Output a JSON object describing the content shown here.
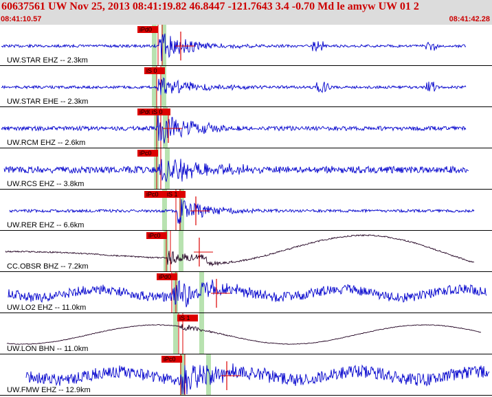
{
  "header": {
    "title": "60637561 UW Nov 25, 2013 08:41:19.82    46.8447 -121.7643  3.4 -0.70 Md le amyw UW 01    2",
    "start_time": "08:41:10.57",
    "end_time": "08:41:42.28"
  },
  "colors": {
    "header_bg": "#dcdcdc",
    "header_text": "#cc0000",
    "trace_blue": "#0000cc",
    "trace_dark": "#200020",
    "pick_red": "#dd0000",
    "window_green": "#b8e2b0",
    "separator": "#000000"
  },
  "traces": [
    {
      "station": "UW.STAR EHZ -- 2.3km",
      "picks": [
        "iPd0"
      ],
      "color": "blue",
      "kind": "hf",
      "noise": 2,
      "burst": 22,
      "decay": 45
    },
    {
      "station": "UW.STAR EHE -- 2.3km",
      "picks": [
        "iS 0"
      ],
      "color": "blue",
      "kind": "hf",
      "noise": 2,
      "burst": 15,
      "decay": 55
    },
    {
      "station": "UW.RCM EHZ -- 2.6km",
      "picks": [
        "iPd0",
        "iS 0"
      ],
      "color": "blue",
      "kind": "hf",
      "noise": 3,
      "burst": 24,
      "decay": 55
    },
    {
      "station": "UW.RCS EHZ -- 3.8km",
      "picks": [
        "iPc0"
      ],
      "color": "blue",
      "kind": "hf",
      "noise": 5,
      "burst": 24,
      "decay": 65
    },
    {
      "station": "UW.RER EHZ -- 6.6km",
      "picks": [
        "iPc0",
        "iS 1"
      ],
      "color": "blue",
      "kind": "hf",
      "noise": 2,
      "burst": 22,
      "decay": 40
    },
    {
      "station": "CC.OBSR BHZ -- 7.2km",
      "picks": [
        "iPc0"
      ],
      "color": "dark",
      "kind": "lp",
      "noise": 1,
      "burst": 12,
      "decay": 40
    },
    {
      "station": "UW.LO2 EHZ -- 11.0km",
      "picks": [
        "iPd0"
      ],
      "color": "blue",
      "kind": "mixed",
      "noise": 7,
      "burst": 26,
      "decay": 50
    },
    {
      "station": "UW.LON BHN -- 11.0km",
      "picks": [
        "iS 1"
      ],
      "color": "dark",
      "kind": "lp2",
      "noise": 0.5,
      "burst": 6,
      "decay": 30
    },
    {
      "station": "UW.FMW EHZ -- 12.9km",
      "picks": [
        "iPc0"
      ],
      "color": "blue",
      "kind": "mixed",
      "noise": 9,
      "burst": 26,
      "decay": 45
    }
  ]
}
